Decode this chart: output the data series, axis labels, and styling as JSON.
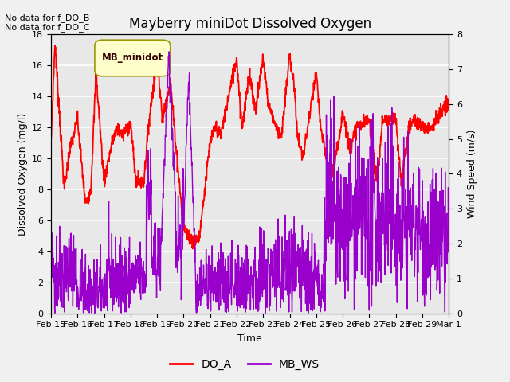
{
  "title": "Mayberry miniDot Dissolved Oxygen",
  "xlabel": "Time",
  "ylabel_left": "Dissolved Oxygen (mg/l)",
  "ylabel_right": "Wind Speed (m/s)",
  "annotation1": "No data for f_DO_B",
  "annotation2": "No data for f_DO_C",
  "legend_box_label": "MB_minidot",
  "legend_entries": [
    "DO_A",
    "MB_WS"
  ],
  "do_color": "#ff0000",
  "ws_color": "#9900cc",
  "ylim_left": [
    0,
    18
  ],
  "ylim_right": [
    0.0,
    8.0
  ],
  "yticks_left": [
    0,
    2,
    4,
    6,
    8,
    10,
    12,
    14,
    16,
    18
  ],
  "yticks_right": [
    0.0,
    1.0,
    2.0,
    3.0,
    4.0,
    5.0,
    6.0,
    7.0,
    8.0
  ],
  "xtick_labels": [
    "Feb 15",
    "Feb 16",
    "Feb 17",
    "Feb 18",
    "Feb 19",
    "Feb 20",
    "Feb 21",
    "Feb 22",
    "Feb 23",
    "Feb 24",
    "Feb 25",
    "Feb 26",
    "Feb 27",
    "Feb 28",
    "Feb 29",
    "Mar 1"
  ],
  "bg_color": "#f0f0f0",
  "plot_bg_color": "#e8e8e8",
  "grid_color": "#ffffff",
  "title_fontsize": 12,
  "label_fontsize": 9,
  "tick_fontsize": 8,
  "annot_fontsize": 8,
  "legend_box_color": "#ffffcc",
  "legend_box_edgecolor": "#999900",
  "linewidth_do": 1.3,
  "linewidth_ws": 1.0
}
